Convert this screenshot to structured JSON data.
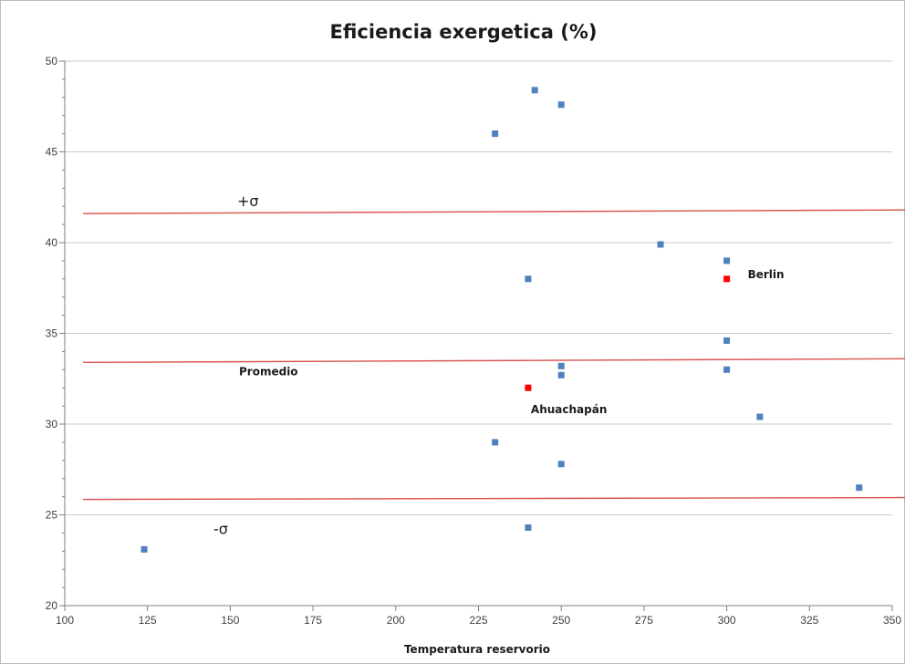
{
  "chart_data": {
    "type": "scatter",
    "title": "Eficiencia exergetica (%)",
    "xlabel": "Temperatura reservorio",
    "ylabel": "",
    "xlim": [
      100,
      350
    ],
    "ylim": [
      20,
      50
    ],
    "xticks": [
      "100",
      "125",
      "150",
      "175",
      "200",
      "225",
      "250",
      "275",
      "300",
      "325",
      "350"
    ],
    "yticks": [
      "20",
      "25",
      "30",
      "35",
      "40",
      "45",
      "50"
    ],
    "grid": "horizontal",
    "colors": {
      "points": "#4f81bd",
      "highlight": "#ff0000",
      "lines": "#d9534f",
      "grid": "#c8c8c8"
    },
    "series": [
      {
        "points": [
          {
            "x": 124,
            "y": 23.1
          },
          {
            "x": 230,
            "y": 46.0
          },
          {
            "x": 230,
            "y": 29.0
          },
          {
            "x": 240,
            "y": 38.0
          },
          {
            "x": 240,
            "y": 24.3
          },
          {
            "x": 242,
            "y": 48.4
          },
          {
            "x": 250,
            "y": 47.6
          },
          {
            "x": 250,
            "y": 33.2
          },
          {
            "x": 250,
            "y": 32.7
          },
          {
            "x": 250,
            "y": 27.8
          },
          {
            "x": 280,
            "y": 39.9
          },
          {
            "x": 300,
            "y": 39.0
          },
          {
            "x": 300,
            "y": 34.6
          },
          {
            "x": 300,
            "y": 33.0
          },
          {
            "x": 310,
            "y": 30.4
          },
          {
            "x": 340,
            "y": 26.5
          }
        ]
      },
      {
        "highlight": true,
        "points": [
          {
            "x": 300,
            "y": 38.0,
            "label": "Berlin"
          },
          {
            "x": 240,
            "y": 32.0,
            "label": "Ahuachapán"
          }
        ]
      }
    ],
    "reference_lines": [
      {
        "label": "+σ",
        "y_start": 41.6,
        "y_end": 41.8
      },
      {
        "label": "Promedio",
        "y_start": 33.4,
        "y_end": 33.6
      },
      {
        "label": "-σ",
        "y_start": 25.85,
        "y_end": 25.95
      }
    ]
  }
}
